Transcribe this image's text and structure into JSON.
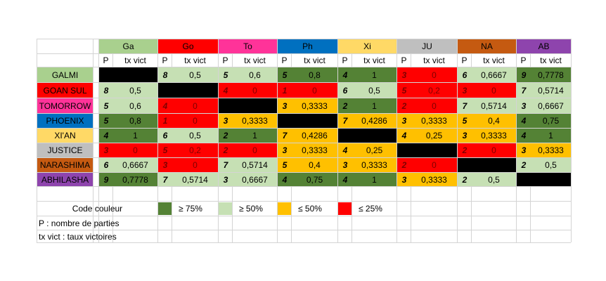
{
  "teams": [
    {
      "code": "Ga",
      "name": "GALMI",
      "color": "#a9d08e"
    },
    {
      "code": "Go",
      "name": "GOAN SUL",
      "color": "#ff0000"
    },
    {
      "code": "To",
      "name": "TOMORROW",
      "color": "#ff3399"
    },
    {
      "code": "Ph",
      "name": "PHOENIX",
      "color": "#0070c0"
    },
    {
      "code": "Xi",
      "name": "XI'AN",
      "color": "#ffd966"
    },
    {
      "code": "JU",
      "name": "JUSTICE",
      "color": "#bfbfbf"
    },
    {
      "code": "NA",
      "name": "NARASHIMA",
      "color": "#c55a11"
    },
    {
      "code": "AB",
      "name": "ABHILASHA",
      "color": "#8e44ad"
    }
  ],
  "subheaders": {
    "p": "P",
    "tx": "tx vict"
  },
  "status_colors": {
    "ge75": "#548235",
    "ge50": "#c6e0b4",
    "le50": "#ffc000",
    "le25": "#ff0000",
    "self": "#000000"
  },
  "matrix": [
    [
      null,
      {
        "p": "8",
        "tx": "0,5",
        "s": "ge50"
      },
      {
        "p": "5",
        "tx": "0,6",
        "s": "ge50"
      },
      {
        "p": "5",
        "tx": "0,8",
        "s": "ge75"
      },
      {
        "p": "4",
        "tx": "1",
        "s": "ge75"
      },
      {
        "p": "3",
        "tx": "0",
        "s": "le25"
      },
      {
        "p": "6",
        "tx": "0,6667",
        "s": "ge50"
      },
      {
        "p": "9",
        "tx": "0,7778",
        "s": "ge75"
      }
    ],
    [
      {
        "p": "8",
        "tx": "0,5",
        "s": "ge50"
      },
      null,
      {
        "p": "4",
        "tx": "0",
        "s": "le25"
      },
      {
        "p": "1",
        "tx": "0",
        "s": "le25"
      },
      {
        "p": "6",
        "tx": "0,5",
        "s": "ge50"
      },
      {
        "p": "5",
        "tx": "0,2",
        "s": "le25"
      },
      {
        "p": "3",
        "tx": "0",
        "s": "le25"
      },
      {
        "p": "7",
        "tx": "0,5714",
        "s": "ge50"
      }
    ],
    [
      {
        "p": "5",
        "tx": "0,6",
        "s": "ge50"
      },
      {
        "p": "4",
        "tx": "0",
        "s": "le25"
      },
      null,
      {
        "p": "3",
        "tx": "0,3333",
        "s": "le50"
      },
      {
        "p": "2",
        "tx": "1",
        "s": "ge75"
      },
      {
        "p": "2",
        "tx": "0",
        "s": "le25"
      },
      {
        "p": "7",
        "tx": "0,5714",
        "s": "ge50"
      },
      {
        "p": "3",
        "tx": "0,6667",
        "s": "ge50"
      }
    ],
    [
      {
        "p": "5",
        "tx": "0,8",
        "s": "ge75"
      },
      {
        "p": "1",
        "tx": "0",
        "s": "le25"
      },
      {
        "p": "3",
        "tx": "0,3333",
        "s": "le50"
      },
      null,
      {
        "p": "7",
        "tx": "0,4286",
        "s": "le50"
      },
      {
        "p": "3",
        "tx": "0,3333",
        "s": "le50"
      },
      {
        "p": "5",
        "tx": "0,4",
        "s": "le50"
      },
      {
        "p": "4",
        "tx": "0,75",
        "s": "ge75"
      }
    ],
    [
      {
        "p": "4",
        "tx": "1",
        "s": "ge75"
      },
      {
        "p": "6",
        "tx": "0,5",
        "s": "ge50"
      },
      {
        "p": "2",
        "tx": "1",
        "s": "ge75"
      },
      {
        "p": "7",
        "tx": "0,4286",
        "s": "le50"
      },
      null,
      {
        "p": "4",
        "tx": "0,25",
        "s": "le50"
      },
      {
        "p": "3",
        "tx": "0,3333",
        "s": "le50"
      },
      {
        "p": "4",
        "tx": "1",
        "s": "ge75"
      }
    ],
    [
      {
        "p": "3",
        "tx": "0",
        "s": "le25"
      },
      {
        "p": "5",
        "tx": "0,2",
        "s": "le25"
      },
      {
        "p": "2",
        "tx": "0",
        "s": "le25"
      },
      {
        "p": "3",
        "tx": "0,3333",
        "s": "le50"
      },
      {
        "p": "4",
        "tx": "0,25",
        "s": "le50"
      },
      null,
      {
        "p": "2",
        "tx": "0",
        "s": "le25"
      },
      {
        "p": "3",
        "tx": "0,3333",
        "s": "le50"
      }
    ],
    [
      {
        "p": "6",
        "tx": "0,6667",
        "s": "ge50"
      },
      {
        "p": "3",
        "tx": "0",
        "s": "le25"
      },
      {
        "p": "7",
        "tx": "0,5714",
        "s": "ge50"
      },
      {
        "p": "5",
        "tx": "0,4",
        "s": "le50"
      },
      {
        "p": "3",
        "tx": "0,3333",
        "s": "le50"
      },
      {
        "p": "2",
        "tx": "0",
        "s": "le25"
      },
      null,
      {
        "p": "2",
        "tx": "0,5",
        "s": "ge50"
      }
    ],
    [
      {
        "p": "9",
        "tx": "0,7778",
        "s": "ge75"
      },
      {
        "p": "7",
        "tx": "0,5714",
        "s": "ge50"
      },
      {
        "p": "3",
        "tx": "0,6667",
        "s": "ge50"
      },
      {
        "p": "4",
        "tx": "0,75",
        "s": "ge75"
      },
      {
        "p": "4",
        "tx": "1",
        "s": "ge75"
      },
      {
        "p": "3",
        "tx": "0,3333",
        "s": "le50"
      },
      {
        "p": "2",
        "tx": "0,5",
        "s": "ge50"
      },
      null
    ]
  ],
  "legend": {
    "title": "Code couleur",
    "items": [
      {
        "status": "ge75",
        "label": "≥ 75%"
      },
      {
        "status": "ge50",
        "label": "≥ 50%"
      },
      {
        "status": "le50",
        "label": "≤ 50%"
      },
      {
        "status": "le25",
        "label": "≤ 25%"
      }
    ],
    "notes": [
      "P : nombre de parties",
      "tx vict : taux victoires"
    ]
  }
}
